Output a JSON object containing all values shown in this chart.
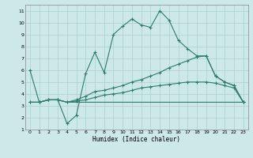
{
  "xlabel": "Humidex (Indice chaleur)",
  "bg_color": "#cce8e8",
  "grid_color": "#aacfcf",
  "line_color": "#2d7d6e",
  "xlim": [
    -0.5,
    23.5
  ],
  "ylim": [
    1,
    11.5
  ],
  "xticks": [
    0,
    1,
    2,
    3,
    4,
    5,
    6,
    7,
    8,
    9,
    10,
    11,
    12,
    13,
    14,
    15,
    16,
    17,
    18,
    19,
    20,
    21,
    22,
    23
  ],
  "yticks": [
    1,
    2,
    3,
    4,
    5,
    6,
    7,
    8,
    9,
    10,
    11
  ],
  "series": [
    {
      "x": [
        0,
        1,
        2,
        3,
        4,
        5,
        6,
        7,
        8,
        9,
        10,
        11,
        12,
        13,
        14,
        15,
        16,
        17,
        18,
        19,
        20,
        21,
        22,
        23
      ],
      "y": [
        6.0,
        3.3,
        3.5,
        3.5,
        1.5,
        2.2,
        5.7,
        7.5,
        5.8,
        9.0,
        9.7,
        10.3,
        9.8,
        9.6,
        11.0,
        10.2,
        8.5,
        7.8,
        7.2,
        7.2,
        5.5,
        5.0,
        4.7,
        3.3
      ],
      "marker": "+"
    },
    {
      "x": [
        0,
        1,
        2,
        3,
        4,
        5,
        6,
        7,
        8,
        9,
        10,
        11,
        12,
        13,
        14,
        15,
        16,
        17,
        18,
        19,
        20,
        21,
        22,
        23
      ],
      "y": [
        3.3,
        3.3,
        3.5,
        3.5,
        3.3,
        3.5,
        3.8,
        4.2,
        4.3,
        4.5,
        4.7,
        5.0,
        5.2,
        5.5,
        5.8,
        6.2,
        6.5,
        6.8,
        7.1,
        7.2,
        5.5,
        5.0,
        4.7,
        3.3
      ],
      "marker": "+"
    },
    {
      "x": [
        0,
        1,
        2,
        3,
        4,
        5,
        6,
        7,
        8,
        9,
        10,
        11,
        12,
        13,
        14,
        15,
        16,
        17,
        18,
        19,
        20,
        21,
        22,
        23
      ],
      "y": [
        3.3,
        3.3,
        3.5,
        3.5,
        3.3,
        3.4,
        3.5,
        3.7,
        3.9,
        4.0,
        4.1,
        4.3,
        4.5,
        4.6,
        4.7,
        4.8,
        4.9,
        5.0,
        5.0,
        5.0,
        4.9,
        4.7,
        4.5,
        3.3
      ],
      "marker": "+"
    },
    {
      "x": [
        0,
        1,
        2,
        3,
        4,
        5,
        6,
        7,
        8,
        9,
        10,
        11,
        12,
        13,
        14,
        15,
        16,
        17,
        18,
        19,
        20,
        21,
        22,
        23
      ],
      "y": [
        3.3,
        3.3,
        3.5,
        3.5,
        3.3,
        3.3,
        3.3,
        3.3,
        3.3,
        3.3,
        3.3,
        3.3,
        3.3,
        3.3,
        3.3,
        3.3,
        3.3,
        3.3,
        3.3,
        3.3,
        3.3,
        3.3,
        3.3,
        3.3
      ],
      "marker": null
    }
  ]
}
